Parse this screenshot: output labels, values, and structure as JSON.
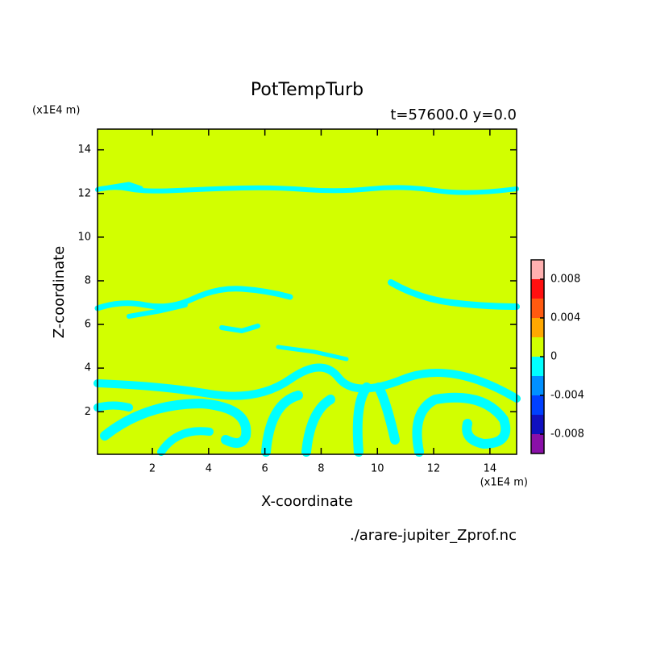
{
  "chart_data": {
    "type": "contour",
    "title": "PotTempTurb",
    "subtitle": "t=57600.0 y=0.0",
    "x_label": "X-coordinate",
    "y_label": "Z-coordinate",
    "x_unit": "(x1E4 m)",
    "y_unit": "(x1E4 m)",
    "source": "./arare-jupiter_Zprof.nc",
    "xlim": [
      0.05,
      14.95
    ],
    "ylim": [
      0.05,
      14.95
    ],
    "xticks": [
      2,
      4,
      6,
      8,
      10,
      12,
      14
    ],
    "yticks": [
      2,
      4,
      6,
      8,
      10,
      12,
      14
    ],
    "colorbar": {
      "levels": [
        -0.01,
        -0.008,
        -0.006,
        -0.004,
        -0.002,
        0,
        0.002,
        0.004,
        0.006,
        0.008,
        0.01
      ],
      "colors": [
        "#8a10a8",
        "#1010c0",
        "#0040ff",
        "#0090ff",
        "#00ffff",
        "#d2ff00",
        "#ffa800",
        "#ff5a10",
        "#ff1010",
        "#ffb0b0"
      ],
      "ticks": [
        -0.008,
        -0.004,
        0,
        0.004,
        0.008
      ]
    }
  }
}
